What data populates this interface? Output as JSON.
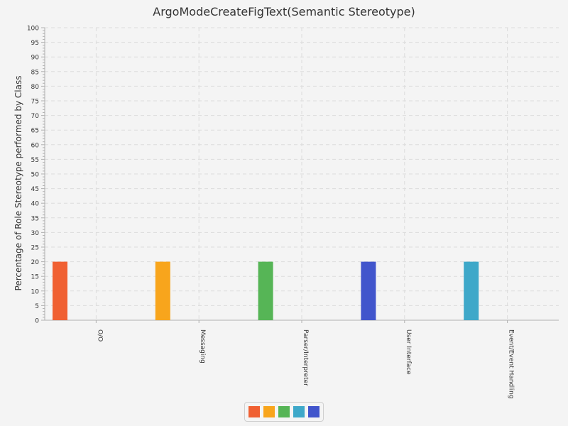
{
  "chart_data": {
    "type": "bar",
    "title": "ArgoModeCreateFigText(Semantic Stereotype)",
    "xlabel": "",
    "ylabel": "Percentage of Role Stereotype performed by Class",
    "ylim": [
      0,
      100
    ],
    "y_major_step": 5,
    "grid": true,
    "legend_placement": "bottom-center",
    "categories": [
      "O/O",
      "Messaging",
      "Parser/Interpreter",
      "User Interface",
      "Event/Event Handling"
    ],
    "values": [
      20,
      20,
      20,
      20,
      20
    ],
    "bar_colors": [
      "#f06032",
      "#f8a51c",
      "#56b556",
      "#4155cc",
      "#3ea8c9"
    ],
    "legend_colors": [
      "#f06032",
      "#f8a51c",
      "#56b556",
      "#3ea8c9",
      "#4155cc"
    ]
  }
}
